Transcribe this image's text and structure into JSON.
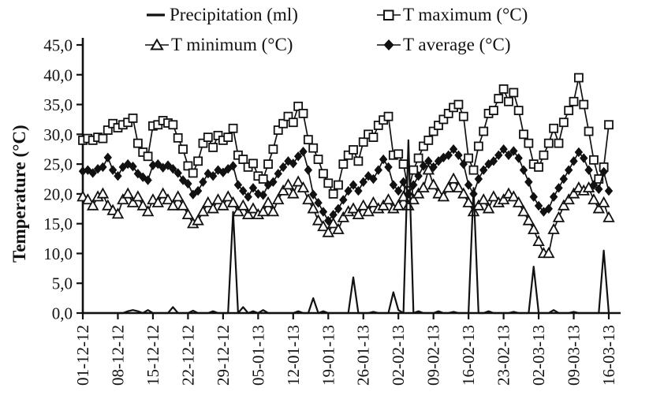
{
  "legend": {
    "items": [
      {
        "id": "precipitation",
        "label": "Precipitation (ml)",
        "marker": "line"
      },
      {
        "id": "t-maximum",
        "label": "T maximum (°C)",
        "marker": "open-square"
      },
      {
        "id": "t-minimum",
        "label": "T minimum (°C)",
        "marker": "open-triangle"
      },
      {
        "id": "t-average",
        "label": "T average (°C)",
        "marker": "filled-diamond"
      }
    ]
  },
  "chart_data": {
    "type": "line",
    "title": "",
    "xlabel": "",
    "ylabel": "Temperature (°C)",
    "ylim": [
      0,
      45
    ],
    "y_tick_step": 5,
    "grid": false,
    "legend_position": "top",
    "decimal_separator": ",",
    "y_tick_labels": [
      "0,0",
      "5,0",
      "10,0",
      "15,0",
      "20,0",
      "25,0",
      "30,0",
      "35,0",
      "40,0",
      "45,0"
    ],
    "x_tick_labels": [
      "01-12-12",
      "08-12-12",
      "15-12-12",
      "22-12-12",
      "29-12-12",
      "05-01-13",
      "12-01-13",
      "19-01-13",
      "26-01-13",
      "02-02-13",
      "09-02-13",
      "16-02-13",
      "23-02-13",
      "02-03-13",
      "09-03-13",
      "16-03-13"
    ],
    "x_start": "01-12-12",
    "x_end": "16-03-13",
    "frequency": "daily",
    "n_points": 106,
    "line_color": "#111111",
    "series": [
      {
        "id": "precipitation",
        "name": "Precipitation (ml)",
        "marker": "line",
        "values": [
          0,
          0,
          0,
          0,
          0,
          0,
          0,
          0,
          0,
          0.3,
          0.5,
          0.3,
          0,
          0.5,
          0,
          0,
          0,
          0,
          1,
          0,
          0,
          0,
          0.4,
          0,
          0,
          0,
          0.3,
          0,
          0,
          0,
          17,
          0,
          1,
          0,
          0.3,
          0,
          0.5,
          0,
          0,
          0,
          0,
          0,
          0,
          0.3,
          0,
          0,
          2.5,
          0,
          0.3,
          0,
          0,
          0,
          0,
          0,
          6,
          0,
          0,
          0,
          0.2,
          0,
          0,
          0,
          3.5,
          0.5,
          0,
          29,
          0,
          0.3,
          0,
          0,
          0,
          0.3,
          0,
          0,
          0.2,
          0,
          0,
          0,
          21,
          0,
          0,
          0.3,
          0,
          0,
          0,
          0,
          0.2,
          0,
          0,
          0,
          7.8,
          0,
          0,
          0,
          0.5,
          0,
          0,
          0,
          0.2,
          0,
          0,
          0,
          0,
          0,
          10.5,
          0
        ]
      },
      {
        "id": "t-maximum",
        "name": "T maximum (°C)",
        "marker": "open-square",
        "values": [
          29.0,
          29.3,
          29.0,
          29.5,
          29.3,
          30.7,
          31.8,
          31.1,
          31.6,
          32.0,
          32.7,
          28.5,
          27.0,
          26.3,
          31.4,
          31.6,
          32.3,
          31.9,
          31.6,
          29.4,
          27.5,
          24.7,
          23.5,
          25.5,
          28.5,
          29.5,
          27.8,
          29.8,
          29.0,
          29.5,
          31.0,
          26.5,
          25.8,
          24.5,
          25.1,
          23.0,
          22.5,
          25.0,
          27.5,
          30.7,
          31.8,
          33.0,
          32.0,
          34.7,
          33.5,
          29.1,
          27.7,
          25.8,
          23.4,
          21.8,
          20.0,
          21.5,
          25.0,
          26.5,
          27.4,
          25.5,
          28.7,
          30.0,
          29.5,
          31.5,
          32.4,
          33.0,
          26.5,
          26.7,
          25.0,
          20.5,
          24.0,
          26.0,
          28.0,
          29.0,
          30.5,
          31.5,
          32.5,
          33.5,
          34.5,
          35.0,
          33.0,
          26.0,
          24.0,
          28.0,
          30.5,
          33.5,
          34.0,
          36.0,
          37.6,
          35.5,
          37.0,
          34.0,
          30.0,
          28.5,
          25.0,
          24.5,
          26.5,
          28.5,
          31.0,
          28.5,
          32.0,
          34.0,
          35.5,
          39.5,
          35.0,
          30.5,
          25.7,
          22.5,
          24.5,
          31.6
        ]
      },
      {
        "id": "t-minimum",
        "name": "T minimum (°C)",
        "marker": "open-triangle",
        "values": [
          19.5,
          19.0,
          18.0,
          19.5,
          20.0,
          18.0,
          17.2,
          16.6,
          19.0,
          20.0,
          18.5,
          19.5,
          18.0,
          17.0,
          19.0,
          18.5,
          20.0,
          19.0,
          18.0,
          19.5,
          18.0,
          16.5,
          15.0,
          15.5,
          17.0,
          18.5,
          17.5,
          19.0,
          18.0,
          19.5,
          18.5,
          17.0,
          18.0,
          16.5,
          17.5,
          16.5,
          17.0,
          18.5,
          17.0,
          19.0,
          20.5,
          21.5,
          20.0,
          22.0,
          21.0,
          19.0,
          17.5,
          15.5,
          14.5,
          13.5,
          15.0,
          14.0,
          16.0,
          17.0,
          17.5,
          16.5,
          18.0,
          17.0,
          18.5,
          17.5,
          18.0,
          19.0,
          17.5,
          18.0,
          19.5,
          18.0,
          19.0,
          20.0,
          21.0,
          24.0,
          21.5,
          20.0,
          19.5,
          21.0,
          22.5,
          21.0,
          20.0,
          18.5,
          17.0,
          18.0,
          19.0,
          17.5,
          19.5,
          18.5,
          19.0,
          20.0,
          19.5,
          18.5,
          17.0,
          15.5,
          14.0,
          12.0,
          10.0,
          10.0,
          14.0,
          16.0,
          18.0,
          19.0,
          20.0,
          21.0,
          20.5,
          21.0,
          19.0,
          17.5,
          18.5,
          16.0
        ]
      },
      {
        "id": "t-average",
        "name": "T average (°C)",
        "marker": "filled-diamond",
        "values": [
          23.8,
          24.0,
          23.5,
          24.2,
          24.5,
          26.1,
          24.0,
          23.0,
          24.5,
          25.0,
          24.6,
          23.4,
          22.8,
          22.3,
          24.8,
          25.0,
          24.4,
          24.8,
          24.2,
          23.5,
          22.3,
          21.7,
          19.9,
          20.5,
          22.0,
          23.4,
          23.0,
          24.0,
          23.6,
          24.2,
          24.7,
          21.5,
          20.5,
          19.5,
          21.0,
          20.0,
          19.8,
          21.5,
          22.0,
          23.4,
          24.5,
          25.5,
          25.1,
          26.3,
          27.1,
          24.0,
          19.9,
          18.5,
          17.0,
          15.5,
          16.5,
          17.5,
          19.0,
          20.5,
          21.5,
          20.5,
          22.0,
          23.0,
          22.5,
          24.0,
          25.8,
          24.5,
          21.5,
          20.5,
          22.0,
          20.0,
          21.5,
          23.0,
          24.7,
          25.5,
          24.5,
          25.5,
          26.1,
          26.5,
          27.5,
          26.5,
          25.0,
          21.5,
          20.0,
          22.5,
          24.0,
          25.0,
          25.5,
          26.5,
          27.5,
          26.5,
          27.2,
          26.0,
          24.0,
          22.0,
          19.5,
          18.0,
          17.0,
          17.5,
          19.5,
          21.0,
          22.5,
          24.0,
          25.5,
          27.0,
          26.0,
          24.0,
          21.5,
          20.8,
          23.7,
          20.5
        ]
      }
    ]
  }
}
